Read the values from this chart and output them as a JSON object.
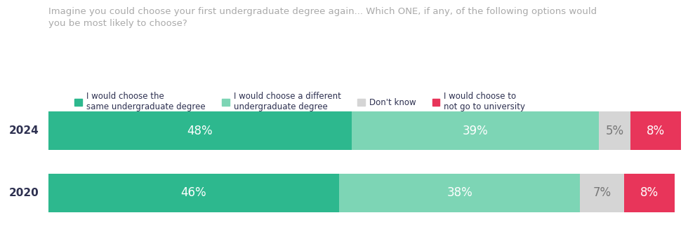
{
  "title": "Imagine you could choose your first undergraduate degree again... Which ONE, if any, of the following options would\nyou be most likely to choose?",
  "title_color": "#aaaaaa",
  "title_fontsize": 9.5,
  "years": [
    "2024",
    "2020"
  ],
  "segments": [
    {
      "label": "I would choose the\nsame undergraduate degree",
      "color": "#2db88e",
      "values": [
        48,
        46
      ]
    },
    {
      "label": "I would choose a different\nundergraduate degree",
      "color": "#7dd5b5",
      "values": [
        39,
        38
      ]
    },
    {
      "label": "Don't know",
      "color": "#d5d5d5",
      "values": [
        5,
        7
      ]
    },
    {
      "label": "I would choose to\nnot go to university",
      "color": "#e8355a",
      "values": [
        8,
        8
      ]
    }
  ],
  "bar_height": 0.62,
  "label_fontsize": 12,
  "label_color_light": "#ffffff",
  "label_color_dark": "#777777",
  "year_fontsize": 11,
  "year_color": "#2d3050",
  "legend_fontsize": 8.5,
  "legend_text_color": "#2d3050",
  "background_color": "#ffffff"
}
